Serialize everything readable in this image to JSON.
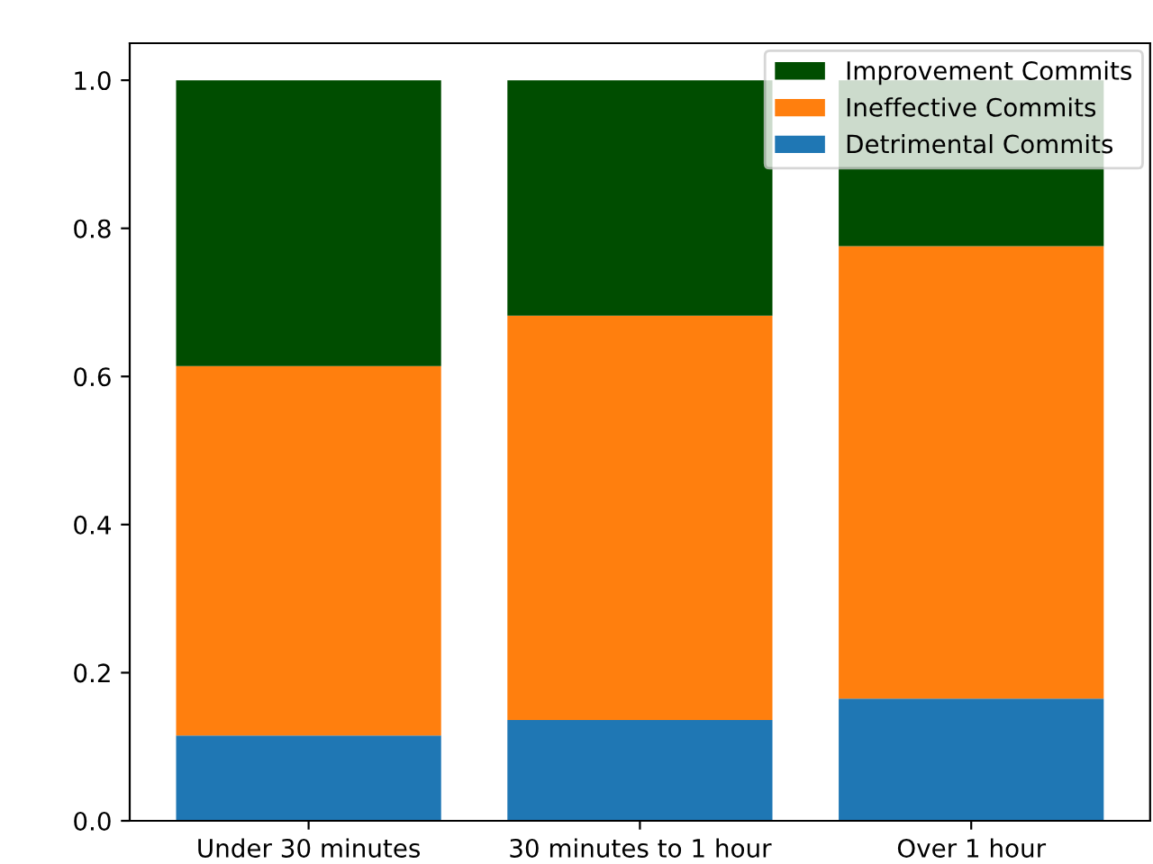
{
  "chart_data": {
    "type": "bar",
    "stacked": true,
    "categories": [
      "Under 30 minutes",
      "30 minutes to 1 hour",
      "Over 1 hour"
    ],
    "series": [
      {
        "name": "Detrimental Commits",
        "color": "#1f77b4",
        "values": [
          0.115,
          0.136,
          0.165
        ]
      },
      {
        "name": "Ineffective Commits",
        "color": "#ff7f0e",
        "values": [
          0.499,
          0.546,
          0.611
        ]
      },
      {
        "name": "Improvement Commits",
        "color": "#004d00",
        "values": [
          0.386,
          0.318,
          0.224
        ]
      }
    ],
    "ylim": [
      0,
      1.05
    ],
    "yticks": [
      {
        "value": 0,
        "label": "0.0"
      },
      0.2,
      0.4,
      0.6,
      0.8,
      {
        "value": 1,
        "label": "1.0"
      }
    ],
    "legend": "top right",
    "grid": false
  }
}
